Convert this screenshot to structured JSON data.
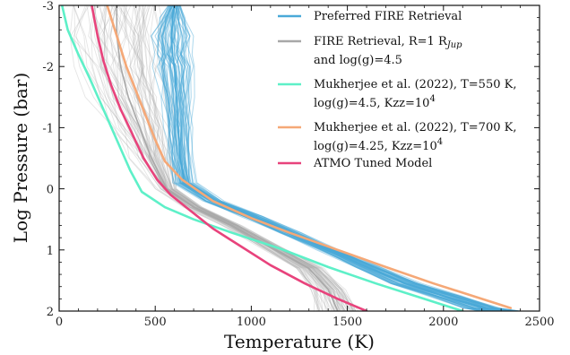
{
  "chart_data": {
    "type": "line",
    "title": "",
    "xlabel": "Temperature (K)",
    "ylabel": "Log Pressure (bar)",
    "xlim": [
      0,
      2500
    ],
    "ylim": [
      2,
      -3
    ],
    "y_inverted": true,
    "grid": false,
    "legend_position": "top-right",
    "x_ticks": [
      0,
      500,
      1000,
      1500,
      2000,
      2500
    ],
    "x_tick_labels": [
      "0",
      "500",
      "1000",
      "1500",
      "2000",
      "2500"
    ],
    "y_ticks": [
      -3,
      -2,
      -1,
      0,
      1,
      2
    ],
    "y_tick_labels": [
      "-3",
      "-2",
      "-1",
      "0",
      "1",
      "2"
    ],
    "colors": {
      "preferred": "#4aa9d8",
      "fire_r1": "#a8a8a8",
      "mukherjee_550": "#5ef0c8",
      "mukherjee_700": "#f5a877",
      "atmo": "#e8437c"
    },
    "legend": [
      {
        "key": "preferred",
        "lines": [
          "Preferred FIRE Retrieval"
        ]
      },
      {
        "key": "fire_r1",
        "lines": [
          "FIRE Retrieval, R=1 R",
          "and log(g)=4.5"
        ],
        "subscript": "Jup"
      },
      {
        "key": "mukherjee_550",
        "lines": [
          "Mukherjee et al. (2022), T=550 K,",
          " log(g)=4.5, Kzz=10"
        ],
        "superscript": "4"
      },
      {
        "key": "mukherjee_700",
        "lines": [
          "Mukherjee et al. (2022), T=700 K,",
          " log(g)=4.25, Kzz=10"
        ],
        "superscript": "4"
      },
      {
        "key": "atmo",
        "lines": [
          "ATMO Tuned Model"
        ]
      }
    ],
    "series": [
      {
        "name": "Preferred FIRE Retrieval",
        "style": "ensemble",
        "color_key": "preferred",
        "points": [
          [
            600,
            -3
          ],
          [
            590,
            -2.8
          ],
          [
            585,
            -2.5
          ],
          [
            590,
            -2.2
          ],
          [
            600,
            -2.0
          ],
          [
            610,
            -1.5
          ],
          [
            620,
            -1.0
          ],
          [
            630,
            -0.5
          ],
          [
            650,
            -0.1
          ],
          [
            800,
            0.2
          ],
          [
            1000,
            0.45
          ],
          [
            1200,
            0.72
          ],
          [
            1400,
            1.0
          ],
          [
            1600,
            1.28
          ],
          [
            1800,
            1.55
          ],
          [
            2000,
            1.75
          ],
          [
            2200,
            1.95
          ],
          [
            2300,
            2.0
          ]
        ],
        "spread": [
          [
            30,
            -3
          ],
          [
            120,
            -2.5
          ],
          [
            90,
            -1.5
          ],
          [
            70,
            -0.5
          ],
          [
            60,
            0.0
          ],
          [
            60,
            0.5
          ],
          [
            60,
            1.0
          ],
          [
            80,
            1.5
          ],
          [
            100,
            2.0
          ]
        ]
      },
      {
        "name": "FIRE Retrieval, R=1 RJup and log(g)=4.5",
        "style": "ensemble",
        "color_key": "fire_r1",
        "points": [
          [
            300,
            -3
          ],
          [
            300,
            -2.5
          ],
          [
            320,
            -2.0
          ],
          [
            360,
            -1.5
          ],
          [
            420,
            -1.0
          ],
          [
            480,
            -0.5
          ],
          [
            560,
            0.0
          ],
          [
            700,
            0.3
          ],
          [
            900,
            0.6
          ],
          [
            1100,
            0.95
          ],
          [
            1300,
            1.3
          ],
          [
            1400,
            1.65
          ],
          [
            1450,
            2.0
          ]
        ],
        "spread": [
          [
            200,
            -3
          ],
          [
            220,
            -2.5
          ],
          [
            220,
            -2.0
          ],
          [
            200,
            -1.5
          ],
          [
            170,
            -1.0
          ],
          [
            120,
            -0.5
          ],
          [
            60,
            0.0
          ],
          [
            50,
            0.5
          ],
          [
            60,
            1.0
          ],
          [
            80,
            1.5
          ],
          [
            100,
            2.0
          ]
        ]
      },
      {
        "name": "Mukherjee et al. (2022), T=550 K, log(g)=4.5, Kzz=10^4",
        "style": "line",
        "color_key": "mukherjee_550",
        "points": [
          [
            15,
            -3
          ],
          [
            45,
            -2.6
          ],
          [
            100,
            -2.2
          ],
          [
            160,
            -1.8
          ],
          [
            230,
            -1.3
          ],
          [
            300,
            -0.8
          ],
          [
            370,
            -0.3
          ],
          [
            430,
            0.05
          ],
          [
            550,
            0.3
          ],
          [
            700,
            0.5
          ],
          [
            900,
            0.72
          ],
          [
            1150,
            0.98
          ],
          [
            1400,
            1.28
          ],
          [
            1650,
            1.55
          ],
          [
            1900,
            1.8
          ],
          [
            2100,
            2.0
          ]
        ]
      },
      {
        "name": "Mukherjee et al. (2022), T=700 K, log(g)=4.25, Kzz=10^4",
        "style": "line",
        "color_key": "mukherjee_700",
        "points": [
          [
            250,
            -3
          ],
          [
            300,
            -2.5
          ],
          [
            350,
            -2.0
          ],
          [
            400,
            -1.6
          ],
          [
            450,
            -1.2
          ],
          [
            500,
            -0.8
          ],
          [
            550,
            -0.45
          ],
          [
            640,
            -0.15
          ],
          [
            800,
            0.2
          ],
          [
            1000,
            0.48
          ],
          [
            1200,
            0.72
          ],
          [
            1450,
            1.0
          ],
          [
            1700,
            1.28
          ],
          [
            1950,
            1.55
          ],
          [
            2200,
            1.8
          ],
          [
            2350,
            1.95
          ]
        ]
      },
      {
        "name": "ATMO Tuned Model",
        "style": "line",
        "color_key": "atmo",
        "points": [
          [
            170,
            -3
          ],
          [
            200,
            -2.5
          ],
          [
            230,
            -2.1
          ],
          [
            270,
            -1.7
          ],
          [
            320,
            -1.3
          ],
          [
            380,
            -0.9
          ],
          [
            440,
            -0.5
          ],
          [
            510,
            -0.15
          ],
          [
            580,
            0.1
          ],
          [
            680,
            0.35
          ],
          [
            800,
            0.65
          ],
          [
            950,
            0.95
          ],
          [
            1100,
            1.25
          ],
          [
            1280,
            1.55
          ],
          [
            1450,
            1.8
          ],
          [
            1600,
            2.0
          ]
        ]
      }
    ]
  }
}
